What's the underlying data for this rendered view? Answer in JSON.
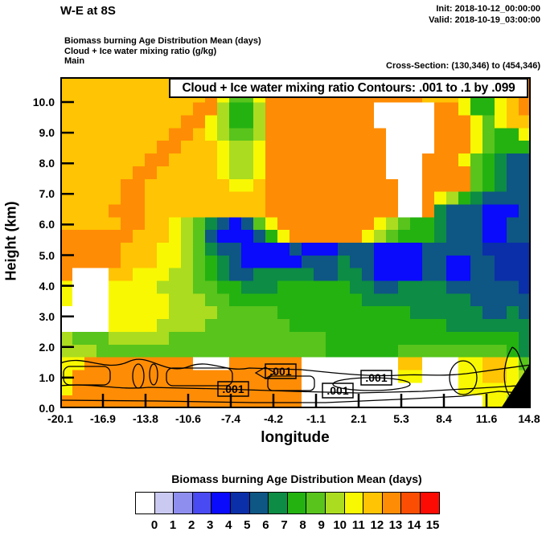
{
  "header": {
    "title": "W-E at 8S",
    "init": "Init: 2018-10-12_00:00:00",
    "valid": "Valid: 2018-10-19_03:00:00",
    "field_line1": "Biomass burning Age Distribution Mean   (days)",
    "field_line2": "Cloud + Ice water mixing ratio   (g/kg)",
    "field_line3": "Main",
    "cross_section": "Cross-Section: (130,346) to (454,346)"
  },
  "plot": {
    "banner": "Cloud + Ice water mixing ratio Contours: .001 to .1 by .099",
    "xlabel": "longitude",
    "ylabel": "Height (km)",
    "x_ticks": [
      "-20.1",
      "-16.9",
      "-13.8",
      "-10.6",
      "-7.4",
      "-4.2",
      "-1.1",
      "2.1",
      "5.3",
      "8.4",
      "11.6",
      "14.8"
    ],
    "y_ticks": [
      "0.0",
      "1.0",
      "2.0",
      "3.0",
      "4.0",
      "5.0",
      "6.0",
      "7.0",
      "8.0",
      "9.0",
      "10.0"
    ],
    "contour_labels": [
      ".001",
      ".001",
      ".001",
      ".001"
    ]
  },
  "chart_data": {
    "type": "heatmap",
    "subtype": "filled-contour vertical cross-section",
    "title": "Biomass burning Age Distribution Mean (days)",
    "overlay_contours": {
      "variable": "Cloud + Ice water mixing ratio (g/kg)",
      "levels": ".001 to .1 by .099",
      "label": ".001",
      "label_count": 4
    },
    "xlabel": "longitude",
    "ylabel": "Height (km)",
    "x_tick_values": [
      -20.1,
      -16.9,
      -13.8,
      -10.6,
      -7.4,
      -4.2,
      -1.1,
      2.1,
      5.3,
      8.4,
      11.6,
      14.8
    ],
    "y_tick_values": [
      0,
      1,
      2,
      3,
      4,
      5,
      6,
      7,
      8,
      9,
      10
    ],
    "xlim": [
      -20.1,
      14.8
    ],
    "ylim": [
      0,
      10.8
    ],
    "cross_section": "(130,346) to (454,346)",
    "colorbar": {
      "title": "Biomass burning Age Distribution Mean  (days)",
      "labels": [
        "0",
        "1",
        "2",
        "3",
        "4",
        "5",
        "6",
        "7",
        "8",
        "9",
        "10",
        "11",
        "12",
        "13",
        "14",
        "15"
      ],
      "colors": [
        "#ffffff",
        "#c9c9f2",
        "#8e8eef",
        "#4a4af2",
        "#0a0afc",
        "#0a2fa8",
        "#0e5684",
        "#0c8c44",
        "#24b211",
        "#58c41c",
        "#abdc1f",
        "#f8f802",
        "#ffc403",
        "#ff8c05",
        "#fb4e04",
        "#fb0b03"
      ]
    },
    "grid": {
      "note": "Coarse raster of the filled field, read visually. Each char is a hex digit 0-15 giving age (days), colored via colorbar.colors.",
      "cols": 39,
      "rows": 26,
      "values": [
        "cccccccccccccccccdddddddddddddcccb88bcd",
        "ccccccccccccdb99bdddddddddddddcccb88bcd",
        "cccccccccccdda88addddddddd00000ddb88bcd",
        "ccccccccccddba88addddddddd00000dddb9bcc",
        "cccccccccddcba99adddddddddd0000dddb988b",
        "ccccccccddcccbaabdddddddddd0000dddb9888",
        "cccccccddccccbaabdddddddddd000dddb98766",
        "ccccccddcccccbaabdddddddddd000dddd98766",
        "cccccddcccccccbbcddddddddddd00dddd98766",
        "cccccddccccccccccddddddddddd00dba876666",
        "ccccdddccccccccccddddddddddd00d76664446",
        "cccccddccba976469bddddddddba98876664466",
        "ddddddcccba9644468bddddddba988876664466",
        "dddddcccbba9766444464446664444666665555",
        "dddddcccbba9876444446667664444664466555",
        "d000ccbbbaa9876677777667764444664466555",
        "b000bbbbaaa9988777888888776677776666665",
        "b000bbbbbaaa998888888888877777777766666",
        "0000bbbbbaaaa99999888888888887777776676",
        "0000bbbbaaaa999999988888888888887777777",
        "a999aaaaa999999999999988888888888888887",
        "aaa999999999999999999988888899999999987",
        "bbddddddddd000dddddd00000000cc000bbccb9",
        "bddddddddddddddddddd00000000bb000bbccba",
        "bddddddddddddddddddd0000000000000bbbbba",
        "dddddddddddddddddddd000000000000000bbaa"
      ]
    }
  }
}
